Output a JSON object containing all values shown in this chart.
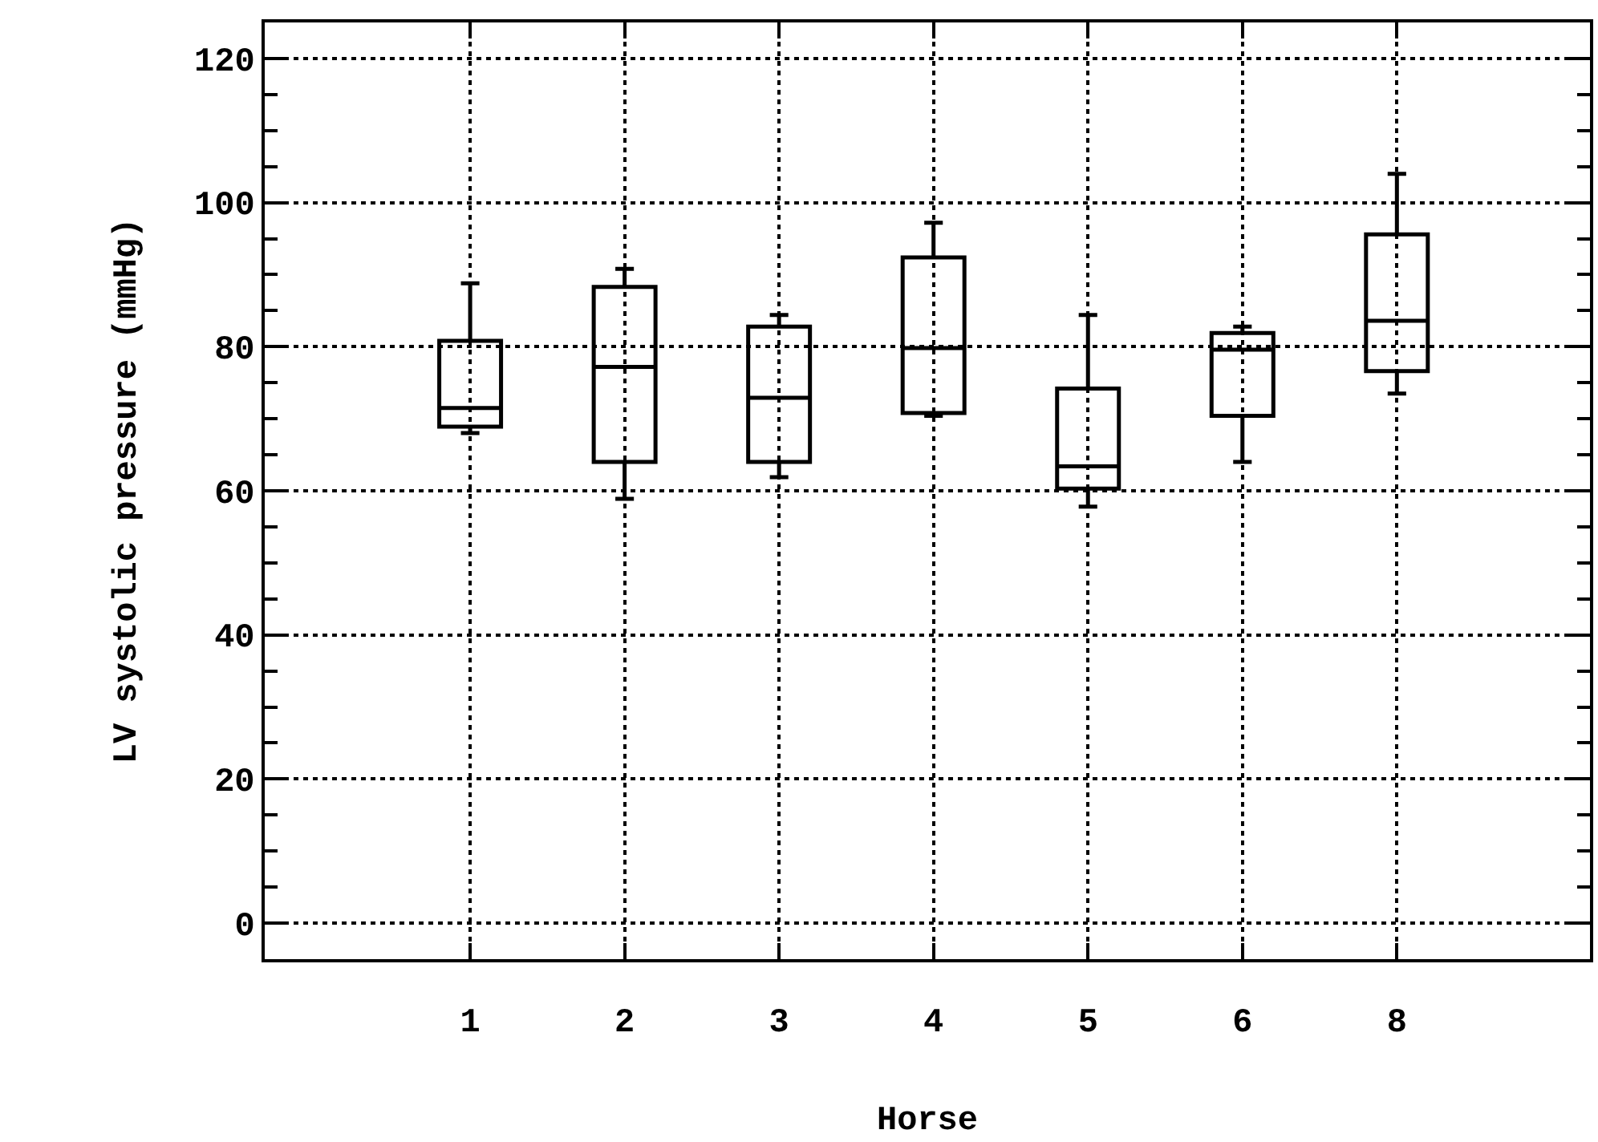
{
  "chart_data": {
    "type": "box",
    "xlabel": "Horse",
    "ylabel": "LV systolic pressure (mmHg)",
    "categories": [
      "1",
      "2",
      "3",
      "4",
      "5",
      "6",
      "8"
    ],
    "boxes": [
      {
        "low": 68,
        "q1": 68.9,
        "median": 71.5,
        "q3": 80.8,
        "high": 88.8
      },
      {
        "low": 58.9,
        "q1": 64,
        "median": 77.2,
        "q3": 88.3,
        "high": 90.8
      },
      {
        "low": 61.9,
        "q1": 64,
        "median": 72.9,
        "q3": 82.8,
        "high": 84.4
      },
      {
        "low": 70.4,
        "q1": 70.8,
        "median": 79.8,
        "q3": 92.4,
        "high": 97.2
      },
      {
        "low": 57.8,
        "q1": 60.3,
        "median": 63.4,
        "q3": 74.2,
        "high": 84.4
      },
      {
        "low": 64,
        "q1": 70.4,
        "median": 79.6,
        "q3": 81.9,
        "high": 82.8
      },
      {
        "low": 73.5,
        "q1": 76.6,
        "median": 83.6,
        "q3": 95.6,
        "high": 104
      }
    ],
    "color": "#000000",
    "ylim": [
      -5,
      125
    ],
    "yticks": [
      0,
      20,
      40,
      60,
      80,
      100,
      120
    ],
    "grid": true
  }
}
